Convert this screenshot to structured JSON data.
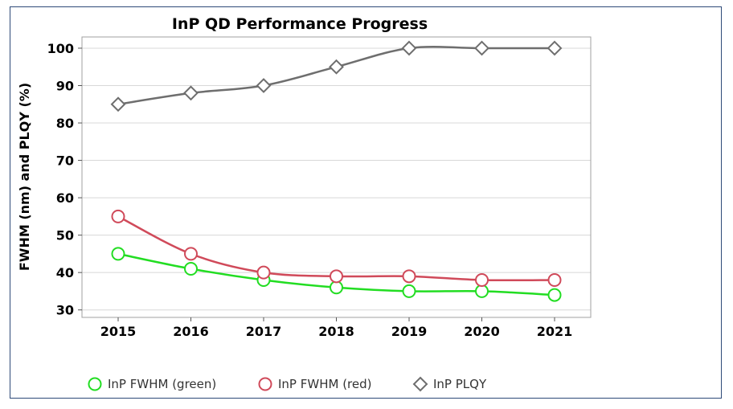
{
  "chart_data": {
    "type": "line",
    "title": "InP QD Performance Progress",
    "xlabel": "",
    "ylabel": "FWHM (nm) and PLQY (%)",
    "categories": [
      "2015",
      "2016",
      "2017",
      "2018",
      "2019",
      "2020",
      "2021"
    ],
    "yticks": [
      "30",
      "40",
      "50",
      "60",
      "70",
      "80",
      "90",
      "100"
    ],
    "ylim": [
      28,
      103
    ],
    "grid": true,
    "legend_position": "bottom",
    "series": [
      {
        "name": "InP FWHM (green)",
        "values": [
          45,
          41,
          38,
          36,
          35,
          35,
          34
        ],
        "color": "#22dd22",
        "marker": "circle"
      },
      {
        "name": "InP FWHM (red)",
        "values": [
          55,
          45,
          40,
          39,
          39,
          38,
          38
        ],
        "color": "#d04a5a",
        "marker": "circle"
      },
      {
        "name": "InP PLQY",
        "values": [
          85,
          88,
          90,
          95,
          100,
          100,
          100
        ],
        "color": "#6e6e6e",
        "marker": "diamond"
      }
    ]
  }
}
